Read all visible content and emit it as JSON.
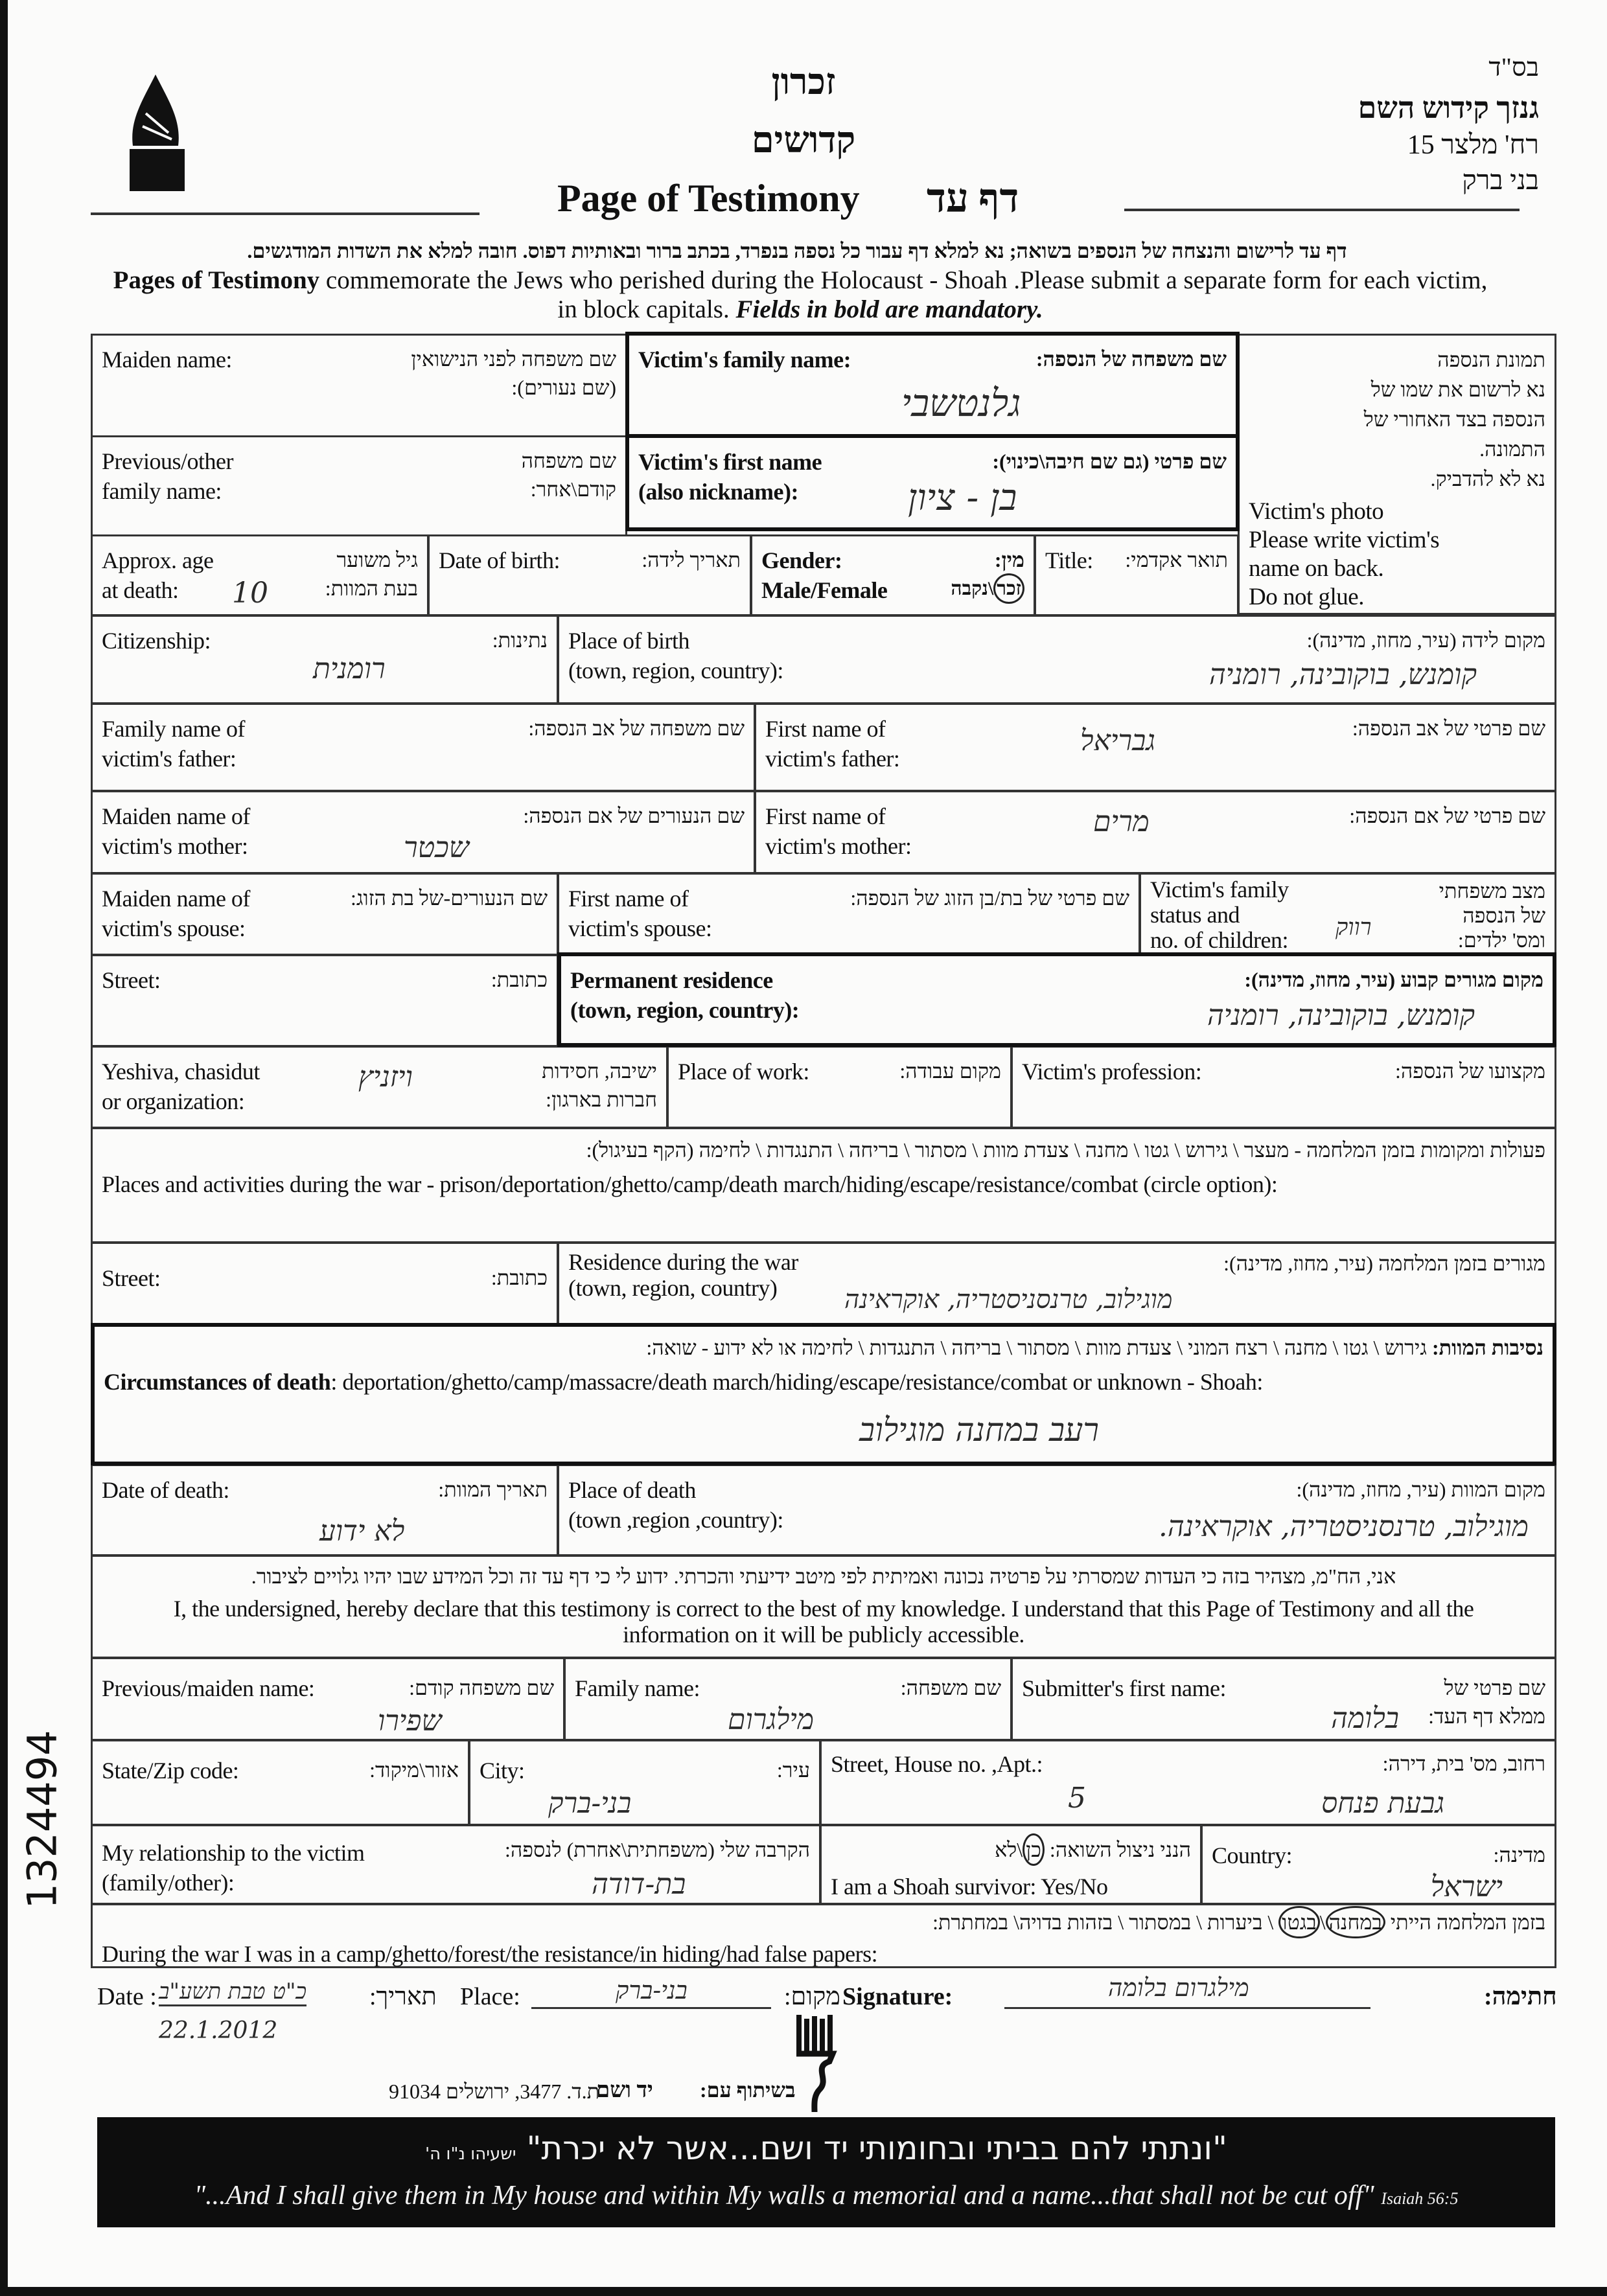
{
  "header": {
    "org_lines": [
      "בס\"ד",
      "גנזך קידוש השם",
      "רח' מלצר 15",
      "בני ברק"
    ],
    "zikaron": "זכרון",
    "kedoshim": "קדושים",
    "title_en": "Page of Testimony",
    "title_he": "דף עד",
    "intro_he": "דף עד לרישום והנצחה של הנספים בשואה; נא למלא דף עבור כל נספה בנפרד, בכתב ברור ובאותיות דפוס. חובה למלא את השדות המודגשים.",
    "intro_en_bold": "Pages of Testimony",
    "intro_en": " commemorate the Jews who perished during the Holocaust - Shoah .Please submit a separate form for each victim, in block capitals. ",
    "intro_en_italic": "Fields in bold are mandatory."
  },
  "side_number": "1324494",
  "fields": {
    "maiden": {
      "en": "Maiden name:",
      "he": "שם משפחה לפני הנישואין\n(שם נעורים):"
    },
    "family": {
      "en": "Victim's family name:",
      "he": "שם משפחה של הנספה:",
      "value": "גלנטשבי"
    },
    "prev": {
      "en": "Previous/other\nfamily name:",
      "he": "שם משפחה\nקודם\\אחר:"
    },
    "first": {
      "en": "Victim's first name\n(also nickname):",
      "he": "שם פרטי (גם שם חיבה\\כינוי):",
      "value": "בן - ציון"
    },
    "photo": {
      "he": "תמונת הנספה\nנא לרשום את שמו של\nהנספה בצד האחורי של\nהתמונה.\nנא לא להדביק.",
      "en": "Victim's photo\nPlease write victim's\nname on back.\nDo not glue."
    },
    "age": {
      "en": "Approx. age\nat death:",
      "he": "גיל משוער\nבעת המוות:",
      "value": "10"
    },
    "dob": {
      "en": "Date of birth:",
      "he": "תאריך לידה:"
    },
    "gender": {
      "en": "Gender:\nMale/Female",
      "he": "מין:",
      "male": "זכר",
      "sep": "\\",
      "female": "נקבה",
      "selected": "זכר"
    },
    "title": {
      "en": "Title:",
      "he": "תואר אקדמי:"
    },
    "citizenship": {
      "en": "Citizenship:",
      "he": "נתינות:",
      "value": "רומנית"
    },
    "birthplace": {
      "en": "Place of birth\n(town, region, country):",
      "he": "מקום לידה (עיר, מחוז, מדינה):",
      "value": "קומנש, בוקובינה, רומניה"
    },
    "father_family": {
      "en": "Family name of\nvictim's father:",
      "he": "שם משפחה של אב הנספה:"
    },
    "father_first": {
      "en": "First name of\nvictim's father:",
      "he": "שם פרטי של אב הנספה:",
      "value": "גבריאל"
    },
    "mother_maiden": {
      "en": "Maiden name of\nvictim's mother:",
      "he": "שם הנעורים של אם הנספה:",
      "value": "שכטר"
    },
    "mother_first": {
      "en": "First name of\nvictim's mother:",
      "he": "שם פרטי של אם הנספה:",
      "value": "מרים"
    },
    "spouse_maiden": {
      "en": "Maiden name of\nvictim's spouse:",
      "he": "שם הנעורים-של בת הזוג:"
    },
    "spouse_first": {
      "en": "First name of\nvictim's spouse:",
      "he": "שם פרטי של בת/בן הזוג של הנספה:"
    },
    "family_status": {
      "en": "Victim's family\nstatus and\nno. of children:",
      "he": "מצב משפחתי\nשל הנספה\nומס' ילדים:",
      "value": "רווק"
    },
    "street": {
      "en": "Street:",
      "he": "כתובת:"
    },
    "residence": {
      "en": "Permanent residence\n(town, region, country):",
      "he": "מקום מגורים קבוע (עיר, מחוז, מדינה):",
      "value": "קומנש, בוקובינה, רומניה"
    },
    "yeshiva": {
      "en": "Yeshiva, chasidut\nor organization:",
      "he": "ישיבה, חסידות\nחברות בארגון:",
      "value": "ויזניץ"
    },
    "work": {
      "en": "Place of work:",
      "he": "מקום עבודה:"
    },
    "profession": {
      "en": "Victim's profession:",
      "he": "מקצועו של הנספה:"
    },
    "places": {
      "he": "פעולות ומקומות בזמן המלחמה - מעצר \\ גירוש \\ גטו \\ מחנה \\ צעדת מוות \\ מסתור \\ בריחה \\ התנגדות \\ לחימה (הקף בעיגול):",
      "en": "Places and activities during the war - prison/deportation/ghetto/camp/death march/hiding/escape/resistance/combat (circle option):"
    },
    "war_street": {
      "en": "Street:",
      "he": "כתובת:"
    },
    "war_residence": {
      "en": "Residence during the war\n(town, region, country)",
      "he": "מגורים בזמן המלחמה (עיר, מחוז, מדינה):",
      "value": "מוגילוב, טרנסניסטריה, אוקראינה"
    },
    "circumstances": {
      "he_bold": "נסיבות המוות:",
      "he": " גירוש \\ גטו \\ מחנה \\ רצח המוני \\ צעדת מוות \\ מסתור \\ בריחה \\ התנגדות \\ לחימה או לא ידוע - שואה:",
      "en_bold": "Circumstances of death",
      "en": ": deportation/ghetto/camp/massacre/death march/hiding/escape/resistance/combat or unknown - Shoah:",
      "value": "רעב במחנה מוגילוב"
    },
    "death_date": {
      "en": "Date of death:",
      "he": "תאריך המוות:",
      "value": "לא ידוע"
    },
    "death_place": {
      "en": "Place of death\n(town ,region ,country):",
      "he": "מקום המוות (עיר, מחוז, מדינה):",
      "value": "מוגילוב, טרנסניסטריה, אוקראינה."
    },
    "declaration": {
      "he": "אני, הח\"מ, מצהיר בזה כי העדות שמסרתי על פרטיה נכונה ואמיתית לפי מיטב ידיעתי והכרתי. ידוע לי כי דף עד זה וכל המידע שבו יהיו גלויים לציבור.",
      "en": "I, the undersigned, hereby declare that this testimony is correct to the best of my knowledge. I understand that this Page of Testimony and all the information on it will be publicly accessible."
    },
    "sub_prev": {
      "en": "Previous/maiden name:",
      "he": "שם משפחה קודם:",
      "value": "שפירו"
    },
    "sub_family": {
      "en": "Family name:",
      "he": "שם משפחה:",
      "value": "מילגרום"
    },
    "sub_first": {
      "en": "Submitter's first name:",
      "he": "שם פרטי של\nממלא דף העד:",
      "value": "בלומה"
    },
    "zip": {
      "en": "State/Zip code:",
      "he": "אזור\\מיקוד:"
    },
    "city": {
      "en": "City:",
      "he": "עיר:",
      "value": "בני-ברק"
    },
    "address": {
      "en": "Street, House no. ,Apt.:",
      "he": "רחוב, מס' בית, דירה:",
      "value": "גבעת פנחס",
      "apt": "5"
    },
    "relationship": {
      "en": "My relationship to the victim\n(family/other):",
      "he": "הקרבה שלי (משפחתית\\אחרת) לנספה:",
      "value": "בת-דודה"
    },
    "survivor": {
      "he": "הנני ניצול השואה:",
      "yes": "כן",
      "no": "לא",
      "en": "I am a Shoah survivor:  Yes/No",
      "selected": "כן"
    },
    "country": {
      "en": "Country:",
      "he": "מדינה:",
      "value": "ישראל"
    },
    "during_war": {
      "he_pre": "בזמן המלחמה הייתי ",
      "opt1": "במחנה",
      "opt2": "בגטו",
      "he_post": " \\ ביערות \\ במסתור \\ בזהות בדויה\\ במחתרת:",
      "en": "During the war I was in a camp/ghetto/forest/the resistance/in hiding/had false papers:",
      "selected": [
        "במחנה",
        "בגטו"
      ]
    }
  },
  "signature_row": {
    "date_en": "Date :",
    "date_he": "תאריך:",
    "date_value": "כ\"ט טבת תשע\"ב",
    "date_value2": "22.1.2012",
    "place_en": "Place:",
    "place_he": "מקום:",
    "place_value": "בני-ברק",
    "sig_en": "Signature:",
    "sig_he": "חתימה:",
    "sig_value": "מילגרום בלומה"
  },
  "footer": {
    "partner": "בשיתוף עם:",
    "yadvashem": "יד ושם",
    "address": "ת.ד. 3477, ירושלים 91034",
    "quote_he": "\"ונתתי להם בביתי ובחומותי יד ושם...אשר לא יכרת\"",
    "quote_he_ref": "ישעיהו נ\"ו ה'",
    "quote_en": "\"...And I shall give them in My house and within My walls a memorial and a name...that shall not be cut off\"",
    "quote_en_ref": "Isaiah 56:5"
  }
}
